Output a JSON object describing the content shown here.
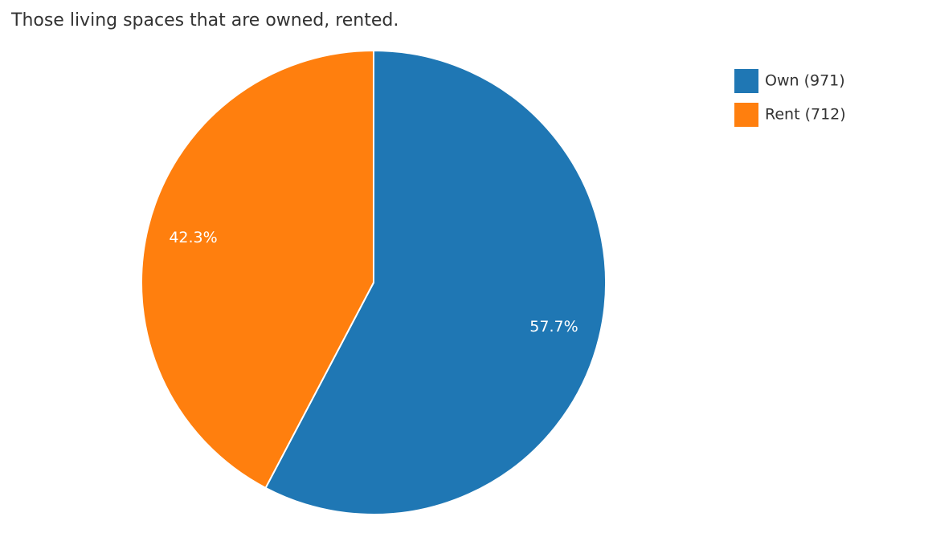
{
  "chart_data": {
    "type": "pie",
    "title": "Those living spaces that are owned, rented.",
    "categories": [
      "Own (971)",
      "Rent (712)"
    ],
    "values": [
      57.7,
      42.3
    ],
    "value_labels": [
      "57.7%",
      "42.3%"
    ],
    "colors": [
      "#1f77b4",
      "#ff7f0e"
    ],
    "legend": "right"
  }
}
